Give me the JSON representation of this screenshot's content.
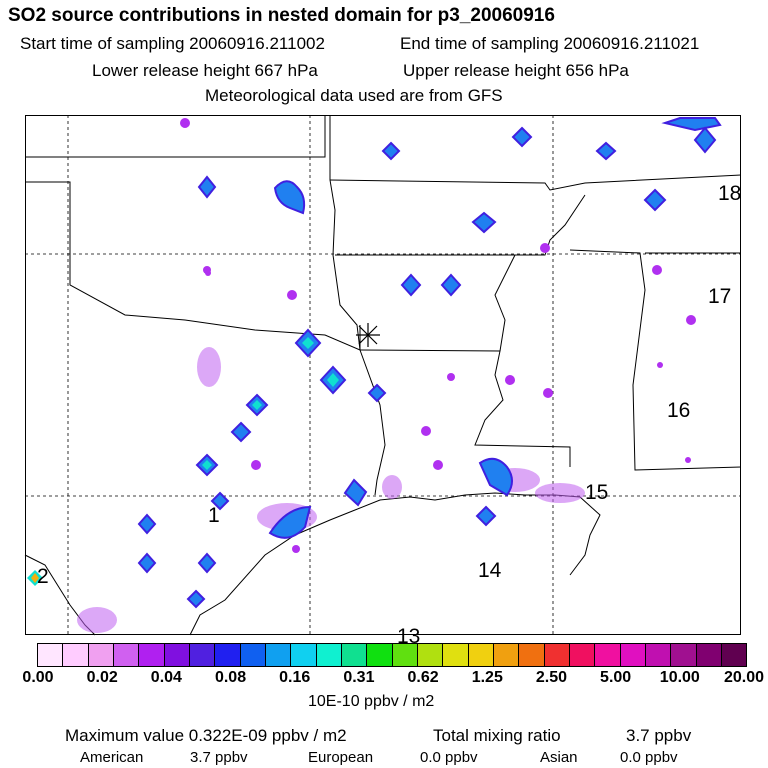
{
  "header": {
    "title": "SO2 source contributions in nested domain for p3_20060916",
    "start_label": "Start time of sampling 20060916.211002",
    "end_label": "End time of sampling 20060916.211021",
    "lower_label": "Lower release height  667 hPa",
    "upper_label": "Upper release height  656 hPa",
    "met_label": "Meteorological data used are from GFS"
  },
  "map": {
    "region_labels": [
      "1",
      "2",
      "13",
      "14",
      "15",
      "16",
      "17",
      "18"
    ],
    "release_marker": "release-point-star"
  },
  "legend": {
    "colors": [
      "#ffe6ff",
      "#ffccff",
      "#f0a0f0",
      "#d060f0",
      "#b020f0",
      "#8010e0",
      "#5020e0",
      "#2020f0",
      "#1060f0",
      "#10a0f0",
      "#10d0f0",
      "#10f0d0",
      "#10e090",
      "#10e010",
      "#60e010",
      "#b0e010",
      "#e0e010",
      "#f0d010",
      "#f0a010",
      "#f07010",
      "#f03030",
      "#f01060",
      "#f010a0",
      "#e010c0",
      "#c010b0",
      "#a01090",
      "#800070",
      "#600050"
    ],
    "ticks": [
      "0.00",
      "0.02",
      "0.04",
      "0.08",
      "0.16",
      "0.31",
      "0.62",
      "1.25",
      "2.50",
      "5.00",
      "10.00",
      "20.00"
    ],
    "unit": "10E-10 ppbv / m2"
  },
  "stats": {
    "max_label": "Maximum value  0.322E-09 ppbv / m2",
    "total_label": "Total mixing ratio",
    "total_value": "3.7 ppbv",
    "american_label": "American",
    "american_value": "3.7 ppbv",
    "european_label": "European",
    "european_value": "0.0 ppbv",
    "asian_label": "Asian",
    "asian_value": "0.0 ppbv"
  }
}
